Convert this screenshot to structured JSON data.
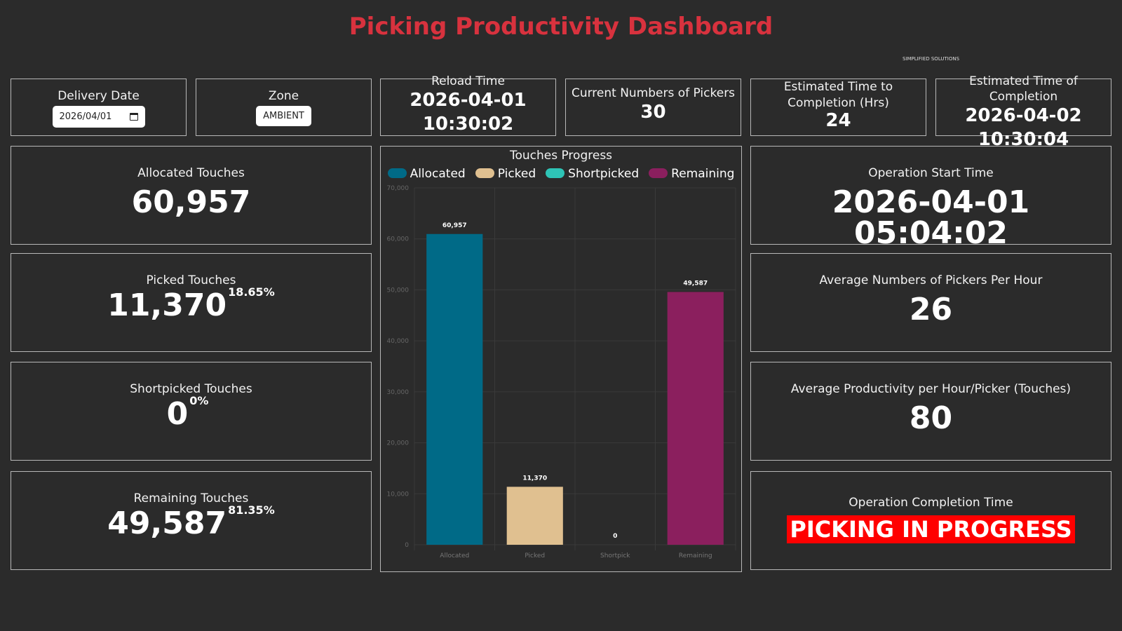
{
  "header": {
    "title": "Picking Productivity Dashboard",
    "brand": "SIMPLIFIED SOLUTIONS"
  },
  "filters": {
    "delivery_date_label": "Delivery Date",
    "delivery_date_value": "2026/04/01",
    "zone_label": "Zone",
    "zone_value": "AMBIENT"
  },
  "top": {
    "reload_label": "Reload Time",
    "reload_date": "2026-04-01",
    "reload_time": "10:30:02",
    "pickers_label": "Current Numbers of Pickers",
    "pickers_value": "30",
    "etc_hrs_label": "Estimated Time to Completion (Hrs)",
    "etc_hrs_value": "24",
    "eto_label": "Estimated Time of Completion",
    "eto_date": "2026-04-02",
    "eto_time": "10:30:04"
  },
  "left": {
    "allocated_label": "Allocated Touches",
    "allocated_value": "60,957",
    "picked_label": "Picked Touches",
    "picked_value": "11,370",
    "picked_pct": "18.65%",
    "short_label": "Shortpicked Touches",
    "short_value": "0",
    "short_pct": "0%",
    "remaining_label": "Remaining Touches",
    "remaining_value": "49,587",
    "remaining_pct": "81.35%"
  },
  "right": {
    "start_label": "Operation Start Time",
    "start_value": "2026-04-01 05:04:02",
    "avg_pickers_label": "Average Numbers of Pickers Per Hour",
    "avg_pickers_value": "26",
    "avg_prod_label": "Average Productivity per Hour/Picker (Touches)",
    "avg_prod_value": "80",
    "completion_label": "Operation Completion Time",
    "completion_value": "PICKING IN PROGRESS"
  },
  "chart_data": {
    "type": "bar",
    "title": "Touches Progress",
    "categories": [
      "Allocated",
      "Picked",
      "Shortpick",
      "Remaining"
    ],
    "values": [
      60957,
      11370,
      0,
      49587
    ],
    "data_labels": [
      "60,957",
      "11,370",
      "0",
      "49,587"
    ],
    "legend": [
      {
        "name": "Allocated",
        "color": "#006a87"
      },
      {
        "name": "Picked",
        "color": "#e0c090"
      },
      {
        "name": "Shortpicked",
        "color": "#2ec4b6"
      },
      {
        "name": "Remaining",
        "color": "#8b1f5e"
      }
    ],
    "bar_colors": [
      "#006a87",
      "#e0c090",
      "#2ec4b6",
      "#8b1f5e"
    ],
    "ylim": [
      0,
      70000
    ],
    "yticks": [
      "0",
      "10,000",
      "20,000",
      "30,000",
      "40,000",
      "50,000",
      "60,000",
      "70,000"
    ],
    "grid": true,
    "legend_position": "top"
  }
}
